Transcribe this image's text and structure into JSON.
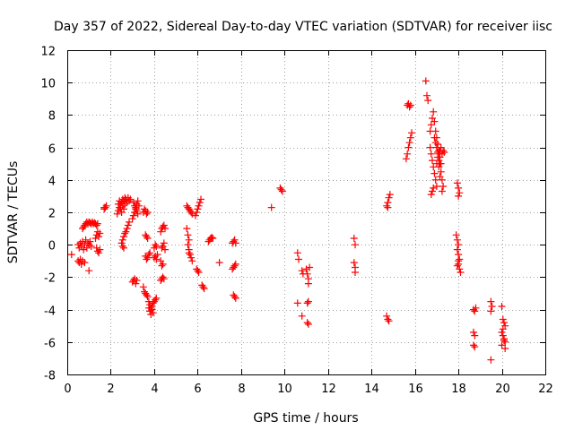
{
  "chart_data": {
    "type": "scatter",
    "title": "Day 357 of 2022, Sidereal Day-to-day VTEC variation (SDTVAR) for receiver iisc",
    "xlabel": "GPS time / hours",
    "ylabel": "SDTVAR / TECUs",
    "xlim": [
      0,
      22
    ],
    "ylim": [
      -8,
      12
    ],
    "xticks": [
      0,
      2,
      4,
      6,
      8,
      10,
      12,
      14,
      16,
      18,
      20,
      22
    ],
    "yticks": [
      -8,
      -6,
      -4,
      -2,
      0,
      2,
      4,
      6,
      8,
      10,
      12
    ],
    "xtick_labels": [
      "0",
      "2",
      "4",
      "6",
      "8",
      "10",
      "12",
      "14",
      "16",
      "18",
      "20",
      "22"
    ],
    "ytick_labels": [
      "-8",
      "-6",
      "-4",
      "-2",
      "0",
      "2",
      "4",
      "6",
      "8",
      "10",
      "12"
    ],
    "grid": true,
    "marker": "+",
    "series": [
      {
        "name": "SDTVAR",
        "color": "#ff0000",
        "points": [
          [
            0.2,
            -0.6
          ],
          [
            0.5,
            -1.0
          ],
          [
            0.55,
            -1.1
          ],
          [
            0.6,
            -0.9
          ],
          [
            0.65,
            -1.2
          ],
          [
            0.7,
            -1.0
          ],
          [
            0.8,
            -1.1
          ],
          [
            0.5,
            0.0
          ],
          [
            0.55,
            -0.2
          ],
          [
            0.6,
            0.1
          ],
          [
            0.65,
            -0.1
          ],
          [
            0.7,
            0.2
          ],
          [
            0.75,
            -0.3
          ],
          [
            0.8,
            0.0
          ],
          [
            0.85,
            0.3
          ],
          [
            0.9,
            -0.2
          ],
          [
            0.95,
            0.1
          ],
          [
            1.0,
            0.0
          ],
          [
            1.05,
            0.2
          ],
          [
            1.1,
            -0.1
          ],
          [
            0.7,
            1.0
          ],
          [
            0.75,
            1.1
          ],
          [
            0.8,
            1.2
          ],
          [
            0.85,
            1.3
          ],
          [
            0.9,
            1.4
          ],
          [
            0.95,
            1.3
          ],
          [
            1.0,
            1.4
          ],
          [
            1.05,
            1.35
          ],
          [
            1.1,
            1.3
          ],
          [
            1.15,
            1.4
          ],
          [
            1.2,
            1.3
          ],
          [
            1.25,
            1.35
          ],
          [
            1.3,
            1.3
          ],
          [
            1.35,
            1.2
          ],
          [
            1.4,
            1.3
          ],
          [
            1.0,
            -1.6
          ],
          [
            1.3,
            0.4
          ],
          [
            1.35,
            0.6
          ],
          [
            1.4,
            0.8
          ],
          [
            1.45,
            0.5
          ],
          [
            1.5,
            0.7
          ],
          [
            1.35,
            -0.2
          ],
          [
            1.4,
            -0.4
          ],
          [
            1.45,
            -0.5
          ],
          [
            1.5,
            -0.3
          ],
          [
            1.7,
            2.2
          ],
          [
            1.75,
            2.3
          ],
          [
            1.8,
            2.4
          ],
          [
            1.7,
            2.3
          ],
          [
            2.3,
            1.9
          ],
          [
            2.35,
            2.1
          ],
          [
            2.4,
            2.3
          ],
          [
            2.45,
            2.5
          ],
          [
            2.5,
            2.6
          ],
          [
            2.55,
            2.8
          ],
          [
            2.6,
            2.7
          ],
          [
            2.65,
            2.9
          ],
          [
            2.7,
            2.8
          ],
          [
            2.75,
            2.6
          ],
          [
            2.8,
            2.9
          ],
          [
            2.85,
            2.7
          ],
          [
            2.9,
            2.8
          ],
          [
            2.35,
            2.5
          ],
          [
            2.4,
            2.7
          ],
          [
            2.45,
            2.2
          ],
          [
            2.5,
            2.0
          ],
          [
            2.55,
            2.4
          ],
          [
            2.6,
            2.2
          ],
          [
            2.65,
            2.5
          ],
          [
            2.5,
            0.1
          ],
          [
            2.55,
            0.3
          ],
          [
            2.6,
            0.5
          ],
          [
            2.65,
            0.7
          ],
          [
            2.7,
            0.8
          ],
          [
            2.75,
            1.0
          ],
          [
            2.8,
            1.2
          ],
          [
            2.85,
            1.4
          ],
          [
            2.6,
            -0.2
          ],
          [
            2.55,
            -0.1
          ],
          [
            3.0,
            1.6
          ],
          [
            3.05,
            1.8
          ],
          [
            3.1,
            2.0
          ],
          [
            3.15,
            2.3
          ],
          [
            3.2,
            2.1
          ],
          [
            3.25,
            1.9
          ],
          [
            3.05,
            2.6
          ],
          [
            3.1,
            2.4
          ],
          [
            3.15,
            2.2
          ],
          [
            3.2,
            2.5
          ],
          [
            3.25,
            2.7
          ],
          [
            3.3,
            2.4
          ],
          [
            3.0,
            -2.3
          ],
          [
            3.05,
            -2.2
          ],
          [
            3.1,
            -2.1
          ],
          [
            3.15,
            -2.4
          ],
          [
            3.2,
            -2.2
          ],
          [
            3.5,
            2.0
          ],
          [
            3.55,
            2.2
          ],
          [
            3.6,
            2.1
          ],
          [
            3.65,
            1.9
          ],
          [
            3.7,
            2.0
          ],
          [
            3.5,
            -2.6
          ],
          [
            3.55,
            -2.9
          ],
          [
            3.6,
            -3.0
          ],
          [
            3.65,
            -3.1
          ],
          [
            3.7,
            -3.2
          ],
          [
            3.75,
            -3.5
          ],
          [
            3.8,
            -3.7
          ],
          [
            3.85,
            -3.9
          ],
          [
            3.9,
            -4.0
          ],
          [
            3.95,
            -4.2
          ],
          [
            3.8,
            -4.1
          ],
          [
            3.85,
            -4.3
          ],
          [
            3.75,
            -3.9
          ],
          [
            3.9,
            -3.8
          ],
          [
            3.95,
            -3.6
          ],
          [
            4.0,
            -3.5
          ],
          [
            4.05,
            -3.4
          ],
          [
            4.1,
            -3.3
          ],
          [
            3.6,
            0.6
          ],
          [
            3.65,
            0.5
          ],
          [
            3.7,
            0.4
          ],
          [
            3.6,
            -0.7
          ],
          [
            3.65,
            -0.9
          ],
          [
            3.7,
            -0.8
          ],
          [
            3.75,
            -0.6
          ],
          [
            3.8,
            -0.5
          ],
          [
            4.0,
            -0.2
          ],
          [
            4.05,
            0.0
          ],
          [
            4.1,
            -0.1
          ],
          [
            4.0,
            -0.8
          ],
          [
            4.05,
            -0.7
          ],
          [
            4.1,
            -0.9
          ],
          [
            4.15,
            -0.6
          ],
          [
            4.3,
            -1.0
          ],
          [
            4.35,
            -1.3
          ],
          [
            4.4,
            -1.2
          ],
          [
            4.35,
            -0.2
          ],
          [
            4.4,
            -0.1
          ],
          [
            4.45,
            0.1
          ],
          [
            4.5,
            -0.3
          ],
          [
            4.3,
            -2.2
          ],
          [
            4.35,
            -2.1
          ],
          [
            4.4,
            -2.0
          ],
          [
            4.45,
            -2.1
          ],
          [
            4.3,
            0.8
          ],
          [
            4.35,
            1.0
          ],
          [
            4.4,
            1.1
          ],
          [
            4.45,
            1.2
          ],
          [
            4.5,
            1.0
          ],
          [
            5.5,
            2.4
          ],
          [
            5.55,
            2.3
          ],
          [
            5.6,
            2.2
          ],
          [
            5.65,
            2.1
          ],
          [
            5.7,
            2.0
          ],
          [
            5.75,
            1.9
          ],
          [
            5.5,
            1.0
          ],
          [
            5.55,
            0.6
          ],
          [
            5.6,
            0.3
          ],
          [
            5.55,
            0.0
          ],
          [
            5.6,
            -0.3
          ],
          [
            5.65,
            -0.6
          ],
          [
            5.7,
            -0.8
          ],
          [
            5.75,
            -1.0
          ],
          [
            5.6,
            -0.5
          ],
          [
            5.9,
            1.8
          ],
          [
            5.95,
            2.0
          ],
          [
            6.0,
            2.2
          ],
          [
            6.05,
            2.4
          ],
          [
            6.1,
            2.6
          ],
          [
            6.15,
            2.8
          ],
          [
            5.95,
            -1.5
          ],
          [
            6.0,
            -1.6
          ],
          [
            6.05,
            -1.7
          ],
          [
            6.2,
            -2.5
          ],
          [
            6.25,
            -2.6
          ],
          [
            6.3,
            -2.7
          ],
          [
            6.5,
            0.2
          ],
          [
            6.55,
            0.3
          ],
          [
            6.6,
            0.4
          ],
          [
            6.65,
            0.45
          ],
          [
            6.7,
            0.4
          ],
          [
            7.0,
            -1.1
          ],
          [
            7.6,
            0.1
          ],
          [
            7.65,
            0.2
          ],
          [
            7.7,
            0.3
          ],
          [
            7.75,
            0.1
          ],
          [
            7.6,
            -1.5
          ],
          [
            7.65,
            -1.4
          ],
          [
            7.7,
            -1.3
          ],
          [
            7.75,
            -1.2
          ],
          [
            7.65,
            -3.1
          ],
          [
            7.7,
            -3.2
          ],
          [
            7.75,
            -3.3
          ],
          [
            9.4,
            2.3
          ],
          [
            9.8,
            3.5
          ],
          [
            9.85,
            3.4
          ],
          [
            9.9,
            3.3
          ],
          [
            10.6,
            -0.5
          ],
          [
            10.65,
            -0.9
          ],
          [
            10.6,
            -3.6
          ],
          [
            10.8,
            -1.6
          ],
          [
            10.85,
            -1.8
          ],
          [
            10.8,
            -4.4
          ],
          [
            11.0,
            -1.5
          ],
          [
            11.05,
            -1.8
          ],
          [
            11.1,
            -2.1
          ],
          [
            11.1,
            -2.4
          ],
          [
            11.15,
            -1.4
          ],
          [
            11.1,
            -3.5
          ],
          [
            11.05,
            -3.6
          ],
          [
            11.05,
            -4.8
          ],
          [
            11.1,
            -4.9
          ],
          [
            13.2,
            0.4
          ],
          [
            13.25,
            0.0
          ],
          [
            13.2,
            -1.1
          ],
          [
            13.25,
            -1.4
          ],
          [
            13.25,
            -1.7
          ],
          [
            14.7,
            2.4
          ],
          [
            14.75,
            2.6
          ],
          [
            14.8,
            2.9
          ],
          [
            14.85,
            3.1
          ],
          [
            14.75,
            2.3
          ],
          [
            14.7,
            -4.4
          ],
          [
            14.75,
            -4.6
          ],
          [
            14.8,
            -4.7
          ],
          [
            15.6,
            5.3
          ],
          [
            15.65,
            5.6
          ],
          [
            15.7,
            6.0
          ],
          [
            15.75,
            6.3
          ],
          [
            15.8,
            6.6
          ],
          [
            15.85,
            6.9
          ],
          [
            15.65,
            8.6
          ],
          [
            15.7,
            8.7
          ],
          [
            15.75,
            8.5
          ],
          [
            15.8,
            8.6
          ],
          [
            16.5,
            10.1
          ],
          [
            16.55,
            9.2
          ],
          [
            16.6,
            8.9
          ],
          [
            16.7,
            7.0
          ],
          [
            16.75,
            7.4
          ],
          [
            16.8,
            7.8
          ],
          [
            16.85,
            8.2
          ],
          [
            16.9,
            7.6
          ],
          [
            16.95,
            7.0
          ],
          [
            17.0,
            6.6
          ],
          [
            17.05,
            6.2
          ],
          [
            17.1,
            5.8
          ],
          [
            17.15,
            5.4
          ],
          [
            17.2,
            5.0
          ],
          [
            16.7,
            6.0
          ],
          [
            16.75,
            5.6
          ],
          [
            16.8,
            5.2
          ],
          [
            16.85,
            4.8
          ],
          [
            16.9,
            4.4
          ],
          [
            16.95,
            4.0
          ],
          [
            17.0,
            3.6
          ],
          [
            16.8,
            3.3
          ],
          [
            16.75,
            3.1
          ],
          [
            16.85,
            3.5
          ],
          [
            17.0,
            5.0
          ],
          [
            17.05,
            5.4
          ],
          [
            17.1,
            5.6
          ],
          [
            17.15,
            5.0
          ],
          [
            17.2,
            4.5
          ],
          [
            17.25,
            4.0
          ],
          [
            17.3,
            3.6
          ],
          [
            17.25,
            3.3
          ],
          [
            17.15,
            4.2
          ],
          [
            17.1,
            4.8
          ],
          [
            16.9,
            6.6
          ],
          [
            16.95,
            6.3
          ],
          [
            17.0,
            6.0
          ],
          [
            17.05,
            5.7
          ],
          [
            17.1,
            5.2
          ],
          [
            17.15,
            5.8
          ],
          [
            17.2,
            6.0
          ],
          [
            17.25,
            5.6
          ],
          [
            17.3,
            5.8
          ],
          [
            17.35,
            5.7
          ],
          [
            17.95,
            3.8
          ],
          [
            18.0,
            3.5
          ],
          [
            18.05,
            3.2
          ],
          [
            18.0,
            3.0
          ],
          [
            17.9,
            0.6
          ],
          [
            17.95,
            0.3
          ],
          [
            18.0,
            0.0
          ],
          [
            17.95,
            -0.3
          ],
          [
            18.0,
            -0.6
          ],
          [
            18.05,
            -0.9
          ],
          [
            18.0,
            -1.2
          ],
          [
            18.05,
            -1.5
          ],
          [
            18.1,
            -1.7
          ],
          [
            17.95,
            -1.3
          ],
          [
            18.0,
            -1.0
          ],
          [
            18.7,
            -4.0
          ],
          [
            18.75,
            -4.1
          ],
          [
            18.8,
            -3.9
          ],
          [
            18.7,
            -5.4
          ],
          [
            18.75,
            -5.6
          ],
          [
            18.7,
            -6.2
          ],
          [
            18.75,
            -6.3
          ],
          [
            19.5,
            -3.5
          ],
          [
            19.55,
            -3.8
          ],
          [
            19.5,
            -4.1
          ],
          [
            19.5,
            -7.1
          ],
          [
            20.0,
            -3.8
          ],
          [
            20.05,
            -4.6
          ],
          [
            20.1,
            -4.8
          ],
          [
            20.15,
            -5.0
          ],
          [
            20.0,
            -5.4
          ],
          [
            20.05,
            -5.6
          ],
          [
            20.1,
            -5.8
          ],
          [
            20.15,
            -6.0
          ],
          [
            20.0,
            -6.2
          ],
          [
            20.05,
            -5.2
          ],
          [
            20.1,
            -5.9
          ],
          [
            20.15,
            -6.4
          ]
        ]
      }
    ]
  }
}
